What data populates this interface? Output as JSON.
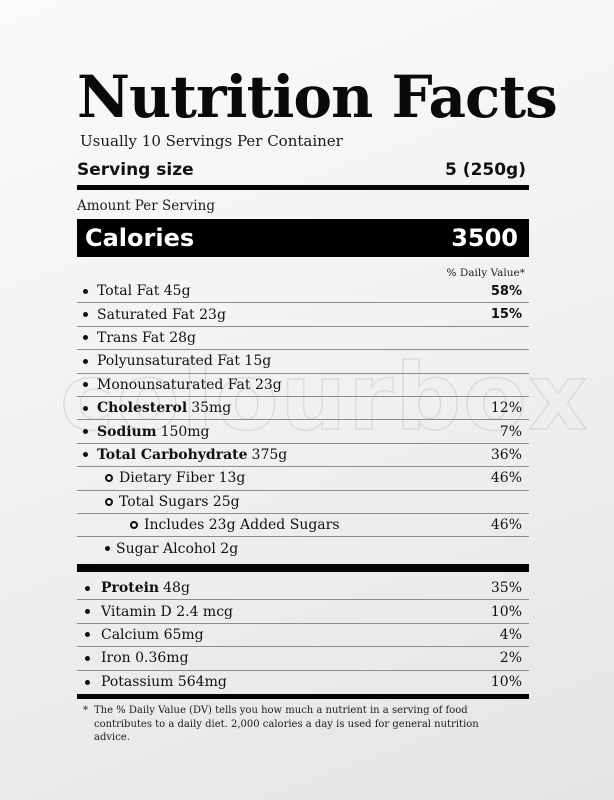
{
  "label": {
    "title": "Nutrition Facts",
    "servings_per_container": "Usually 10 Servings Per Container",
    "serving_size": {
      "label": "Serving size",
      "value": "5 (250g)"
    },
    "amount_per_serving": "Amount Per Serving",
    "calories": {
      "label": "Calories",
      "value": "3500"
    },
    "daily_value_header": "% Daily Value*"
  },
  "nutrients": [
    {
      "name": "",
      "amount": "Total Fat 45g",
      "dv": "58%",
      "dv_bold": true,
      "indent": 0,
      "bullet": "dot"
    },
    {
      "name": "",
      "amount": "Saturated Fat 23g",
      "dv": "15%",
      "dv_bold": true,
      "indent": 0,
      "bullet": "dot"
    },
    {
      "name": "",
      "amount": "Trans Fat 28g",
      "dv": "",
      "indent": 0,
      "bullet": "dot"
    },
    {
      "name": "",
      "amount": "Polyunsaturated Fat 15g",
      "dv": "",
      "indent": 0,
      "bullet": "dot"
    },
    {
      "name": "",
      "amount": "Monounsaturated Fat 23g",
      "dv": "",
      "indent": 0,
      "bullet": "dot"
    },
    {
      "name": "Cholesterol",
      "amount": "35mg",
      "dv": "12%",
      "indent": 0,
      "bullet": "dot"
    },
    {
      "name": "Sodium",
      "amount": "150mg",
      "dv": "7%",
      "indent": 0,
      "bullet": "dot"
    },
    {
      "name": "Total Carbohydrate",
      "amount": "375g",
      "dv": "36%",
      "indent": 0,
      "bullet": "dot"
    },
    {
      "name": "",
      "amount": "Dietary Fiber 13g",
      "dv": "46%",
      "indent": 1,
      "bullet": "ring"
    },
    {
      "name": "",
      "amount": "Total Sugars 25g",
      "dv": "",
      "indent": 1,
      "bullet": "ring"
    },
    {
      "name": "",
      "amount": "Includes 23g Added Sugars",
      "dv": "46%",
      "indent": 2,
      "bullet": "ring"
    },
    {
      "name": "",
      "amount": "Sugar Alcohol 2g",
      "dv": "",
      "indent": 1,
      "bullet": "dot"
    }
  ],
  "nutrients2": [
    {
      "name": "Protein",
      "amount": "48g",
      "dv": "35%"
    },
    {
      "name": "",
      "amount": "Vitamin D 2.4 mcg",
      "dv": "10%"
    },
    {
      "name": "",
      "amount": "Calcium 65mg",
      "dv": "4%"
    },
    {
      "name": "",
      "amount": "Iron 0.36mg",
      "dv": "2%"
    },
    {
      "name": "",
      "amount": "Potassium 564mg",
      "dv": "10%"
    }
  ],
  "footnote": {
    "marker": "*",
    "text": "The % Daily Value (DV) tells you how much a nutrient in a serving of food contributes to a daily diet. 2,000 calories a day is used for general nutrition advice."
  },
  "watermark": "colourbox",
  "colors": {
    "ink": "#000000",
    "divider": "#8d8d8d",
    "background_light": "#fafbfd",
    "background_dark": "#e4e4e4"
  }
}
